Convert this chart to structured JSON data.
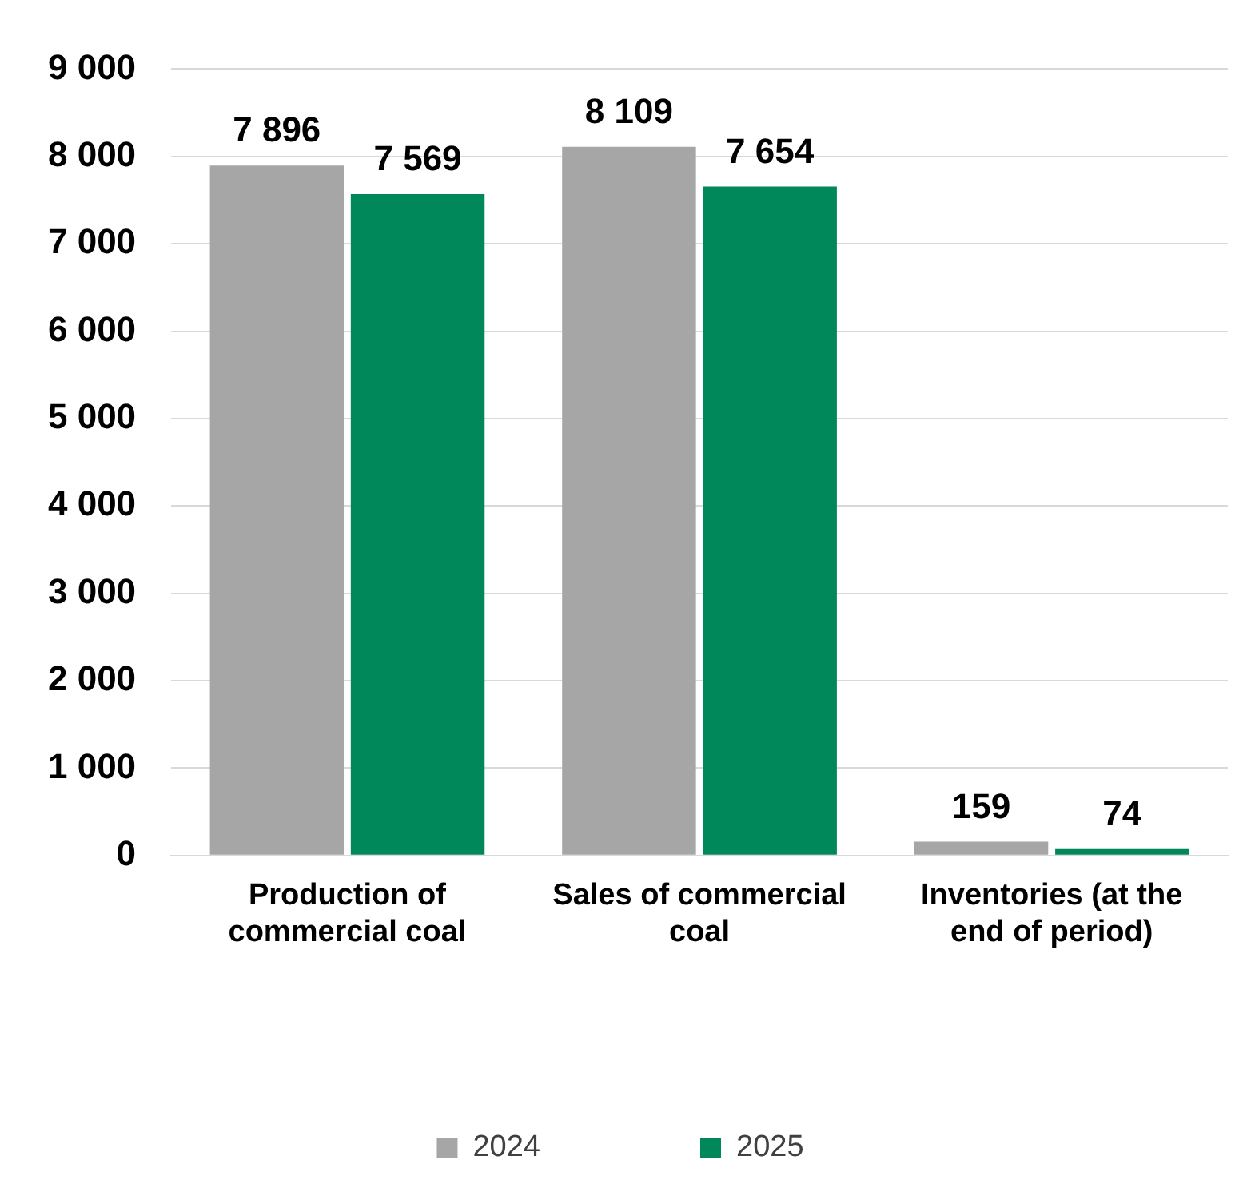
{
  "chart_data": {
    "type": "bar",
    "categories": [
      "Production of commercial coal",
      "Sales of commercial coal",
      "Inventories (at the end of period)"
    ],
    "series": [
      {
        "name": "2024",
        "color": "#a6a6a6",
        "values": [
          7896,
          8109,
          159
        ],
        "value_labels": [
          "7 896",
          "8 109",
          "159"
        ]
      },
      {
        "name": "2025",
        "color": "#00875a",
        "values": [
          7569,
          7654,
          74
        ],
        "value_labels": [
          "7 569",
          "7 654",
          "74"
        ]
      }
    ],
    "ylim": [
      0,
      9000
    ],
    "yticks": [
      {
        "value": 0,
        "label": "0"
      },
      {
        "value": 1000,
        "label": "1 000"
      },
      {
        "value": 2000,
        "label": "2 000"
      },
      {
        "value": 3000,
        "label": "3 000"
      },
      {
        "value": 4000,
        "label": "4 000"
      },
      {
        "value": 5000,
        "label": "5 000"
      },
      {
        "value": 6000,
        "label": "6 000"
      },
      {
        "value": 7000,
        "label": "7 000"
      },
      {
        "value": 8000,
        "label": "8 000"
      },
      {
        "value": 9000,
        "label": "9 000"
      }
    ],
    "grid": "y",
    "legend": "bottom"
  }
}
